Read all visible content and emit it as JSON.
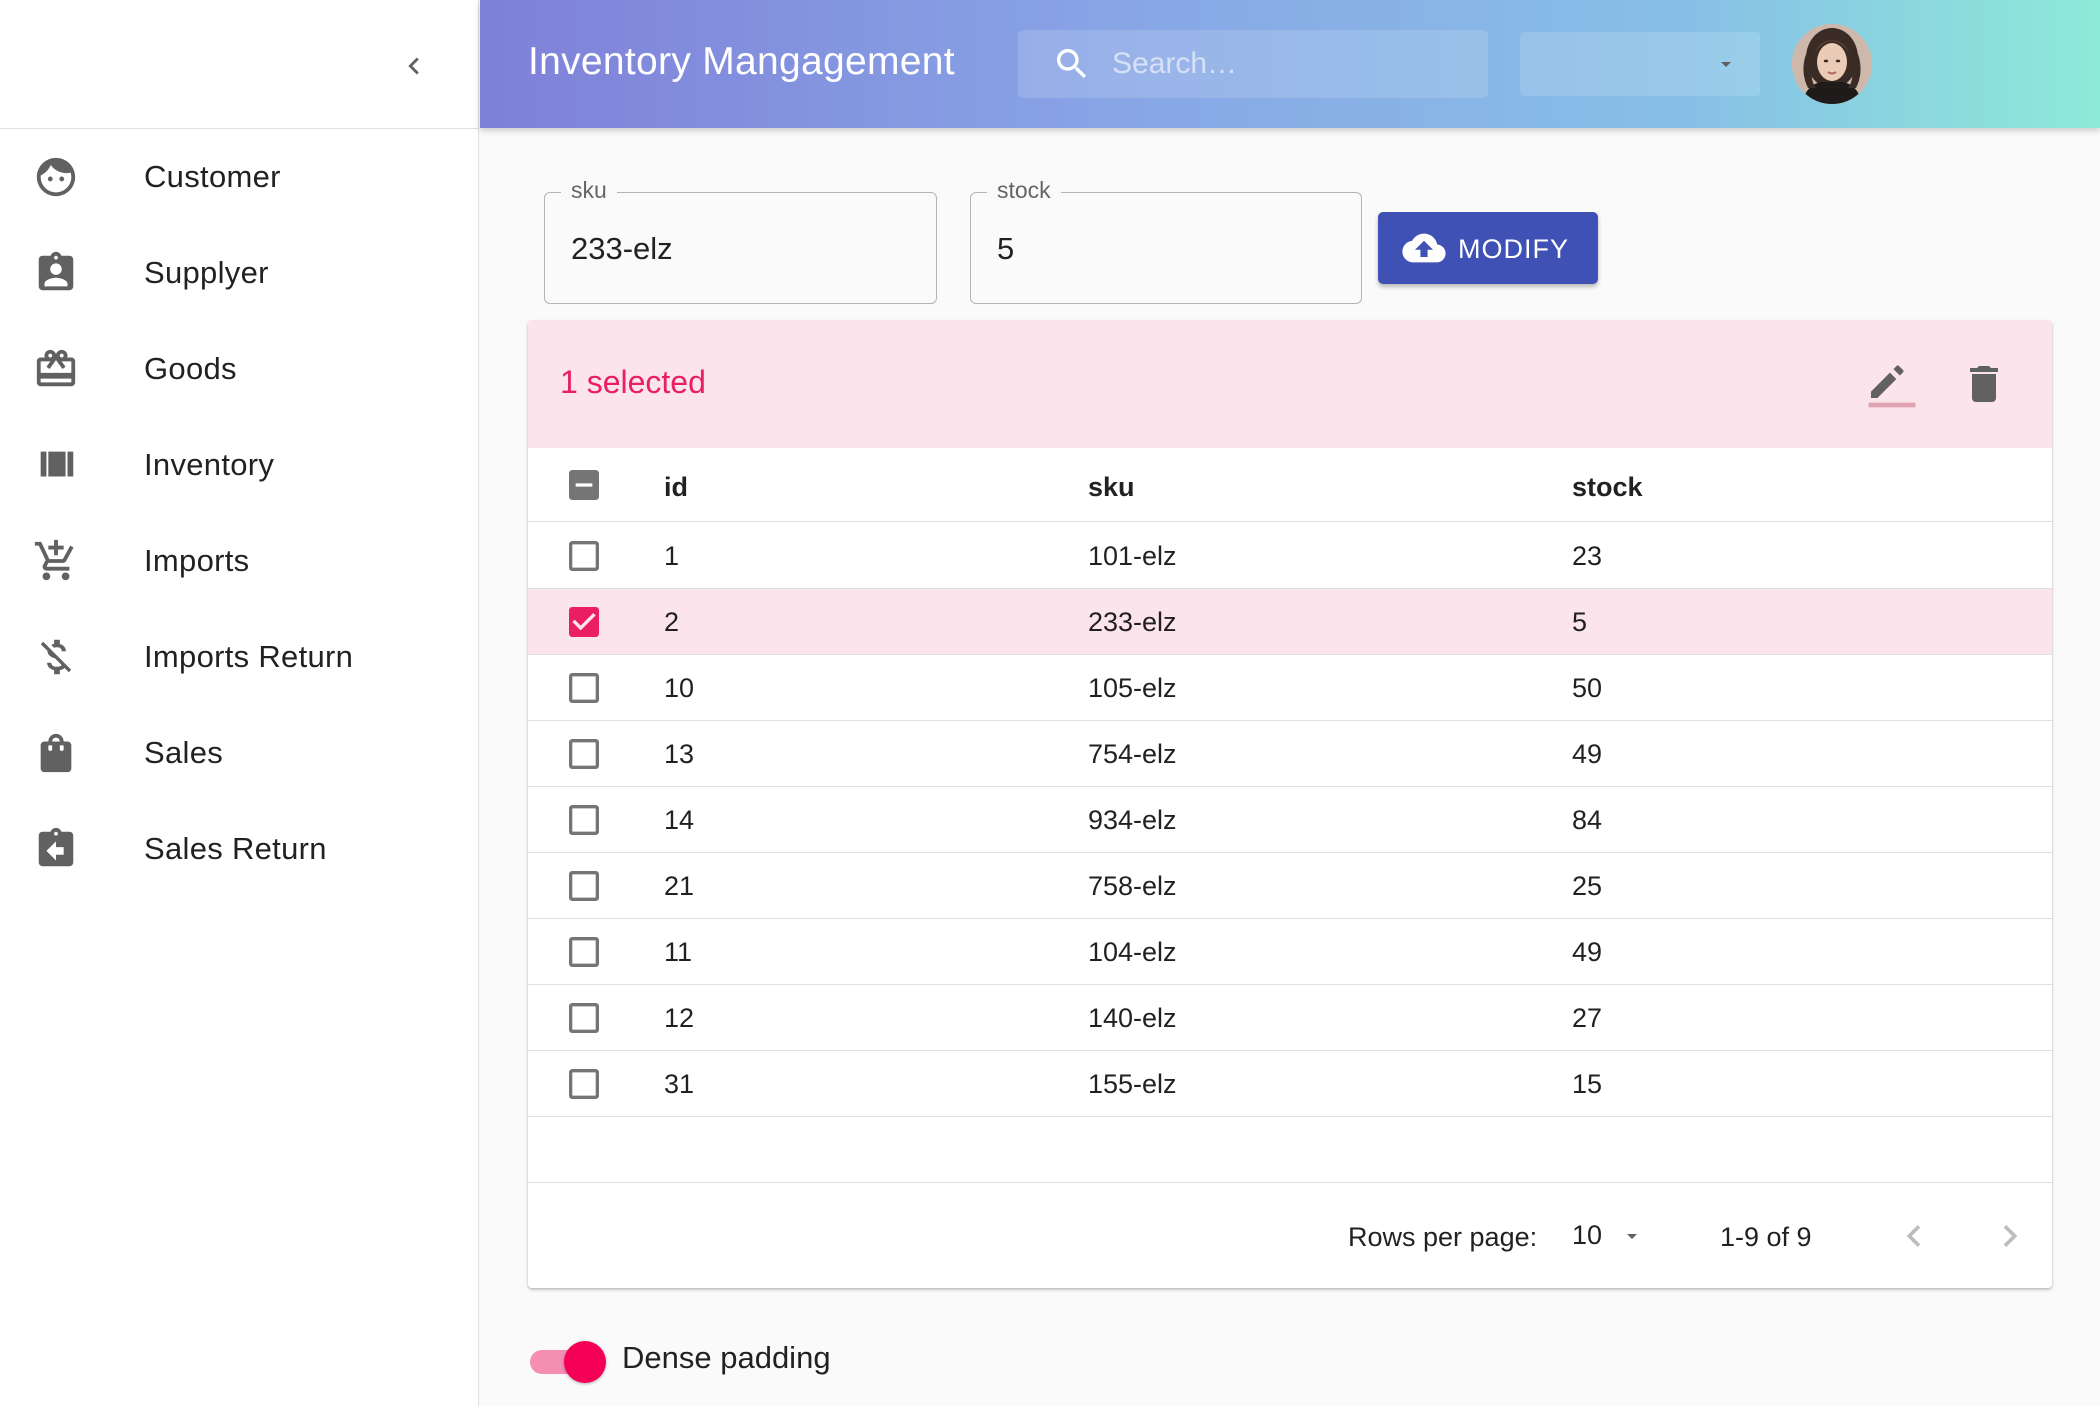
{
  "app": {
    "title": "Inventory Mangagement"
  },
  "search": {
    "placeholder": "Search…",
    "value": ""
  },
  "header_select": {
    "value": ""
  },
  "sidebar": {
    "items": [
      {
        "label": "Customer",
        "icon": "face-icon"
      },
      {
        "label": "Supplyer",
        "icon": "contact-badge-icon"
      },
      {
        "label": "Goods",
        "icon": "gift-card-icon"
      },
      {
        "label": "Inventory",
        "icon": "view-array-icon"
      },
      {
        "label": "Imports",
        "icon": "add-cart-icon"
      },
      {
        "label": "Imports Return",
        "icon": "money-off-icon"
      },
      {
        "label": "Sales",
        "icon": "shopping-bag-icon"
      },
      {
        "label": "Sales Return",
        "icon": "assignment-return-icon"
      }
    ]
  },
  "form": {
    "sku_label": "sku",
    "sku_value": "233-elz",
    "stock_label": "stock",
    "stock_value": "5",
    "modify_label": "MODIFY"
  },
  "table": {
    "selected_text": "1 selected",
    "columns": [
      "id",
      "sku",
      "stock"
    ],
    "rows": [
      {
        "id": "1",
        "sku": "101-elz",
        "stock": "23",
        "checked": false
      },
      {
        "id": "2",
        "sku": "233-elz",
        "stock": "5",
        "checked": true
      },
      {
        "id": "10",
        "sku": "105-elz",
        "stock": "50",
        "checked": false
      },
      {
        "id": "13",
        "sku": "754-elz",
        "stock": "49",
        "checked": false
      },
      {
        "id": "14",
        "sku": "934-elz",
        "stock": "84",
        "checked": false
      },
      {
        "id": "21",
        "sku": "758-elz",
        "stock": "25",
        "checked": false
      },
      {
        "id": "11",
        "sku": "104-elz",
        "stock": "49",
        "checked": false
      },
      {
        "id": "12",
        "sku": "140-elz",
        "stock": "27",
        "checked": false
      },
      {
        "id": "31",
        "sku": "155-elz",
        "stock": "15",
        "checked": false
      }
    ]
  },
  "pagination": {
    "rows_per_page_label": "Rows per page:",
    "rows_per_page_value": "10",
    "range": "1-9 of 9"
  },
  "dense": {
    "label": "Dense padding",
    "on": true
  },
  "colors": {
    "primary": "#3f51b5",
    "secondary": "#e91e63",
    "selected_bg": "#fce4ec",
    "switch_thumb": "#f50057"
  }
}
